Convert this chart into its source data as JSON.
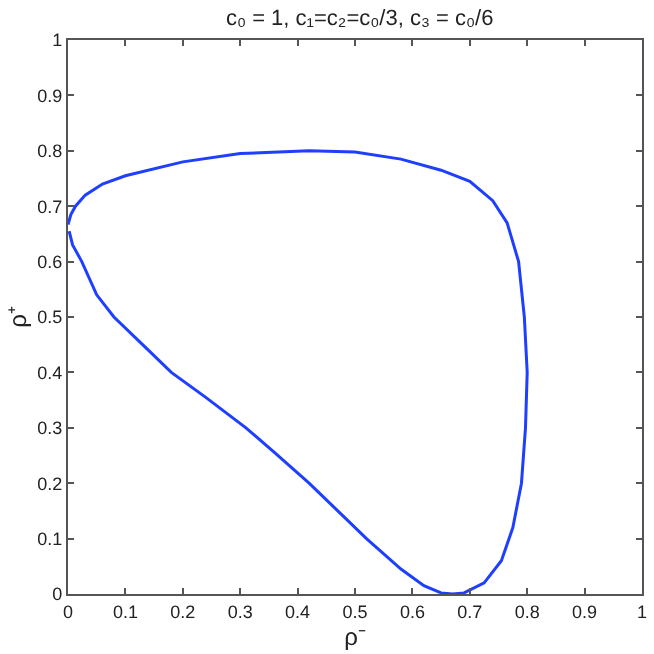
{
  "chart_data": {
    "type": "line",
    "title": "c₀ = 1, c₁=c₂=c₀/3, c₃ = c₀/6",
    "xlabel": "ρ⁻",
    "ylabel": "ρ⁺",
    "series": [
      {
        "color": "#1f3fff",
        "x": [
          0,
          0.005,
          0.013,
          0.03,
          0.06,
          0.1,
          0.2,
          0.3,
          0.42,
          0.5,
          0.58,
          0.65,
          0.7,
          0.74,
          0.765,
          0.785,
          0.795,
          0.8,
          0.797,
          0.79,
          0.775,
          0.755,
          0.725,
          0.69,
          0.67,
          0.65,
          0.62,
          0.58,
          0.52,
          0.47,
          0.42,
          0.36,
          0.31,
          0.24,
          0.18,
          0.13,
          0.08,
          0.05,
          0.024,
          0.008,
          0.002
        ],
        "values": [
          0.667,
          0.685,
          0.7,
          0.72,
          0.74,
          0.755,
          0.78,
          0.795,
          0.8,
          0.798,
          0.785,
          0.765,
          0.745,
          0.71,
          0.67,
          0.6,
          0.5,
          0.4,
          0.3,
          0.2,
          0.12,
          0.06,
          0.02,
          0.002,
          0,
          0.002,
          0.015,
          0.045,
          0.1,
          0.15,
          0.2,
          0.255,
          0.3,
          0.355,
          0.4,
          0.45,
          0.5,
          0.54,
          0.6,
          0.63,
          0.655
        ]
      }
    ],
    "xlim": [
      0,
      1
    ],
    "ylim": [
      0,
      1
    ],
    "xticks": [
      0,
      0.1,
      0.2,
      0.3,
      0.4,
      0.5,
      0.6,
      0.7,
      0.8,
      0.9,
      1
    ],
    "yticks": [
      0,
      0.1,
      0.2,
      0.3,
      0.4,
      0.5,
      0.6,
      0.7,
      0.8,
      0.9,
      1
    ],
    "grid": false,
    "legend": false,
    "marker": "none",
    "line_style": "solid"
  }
}
